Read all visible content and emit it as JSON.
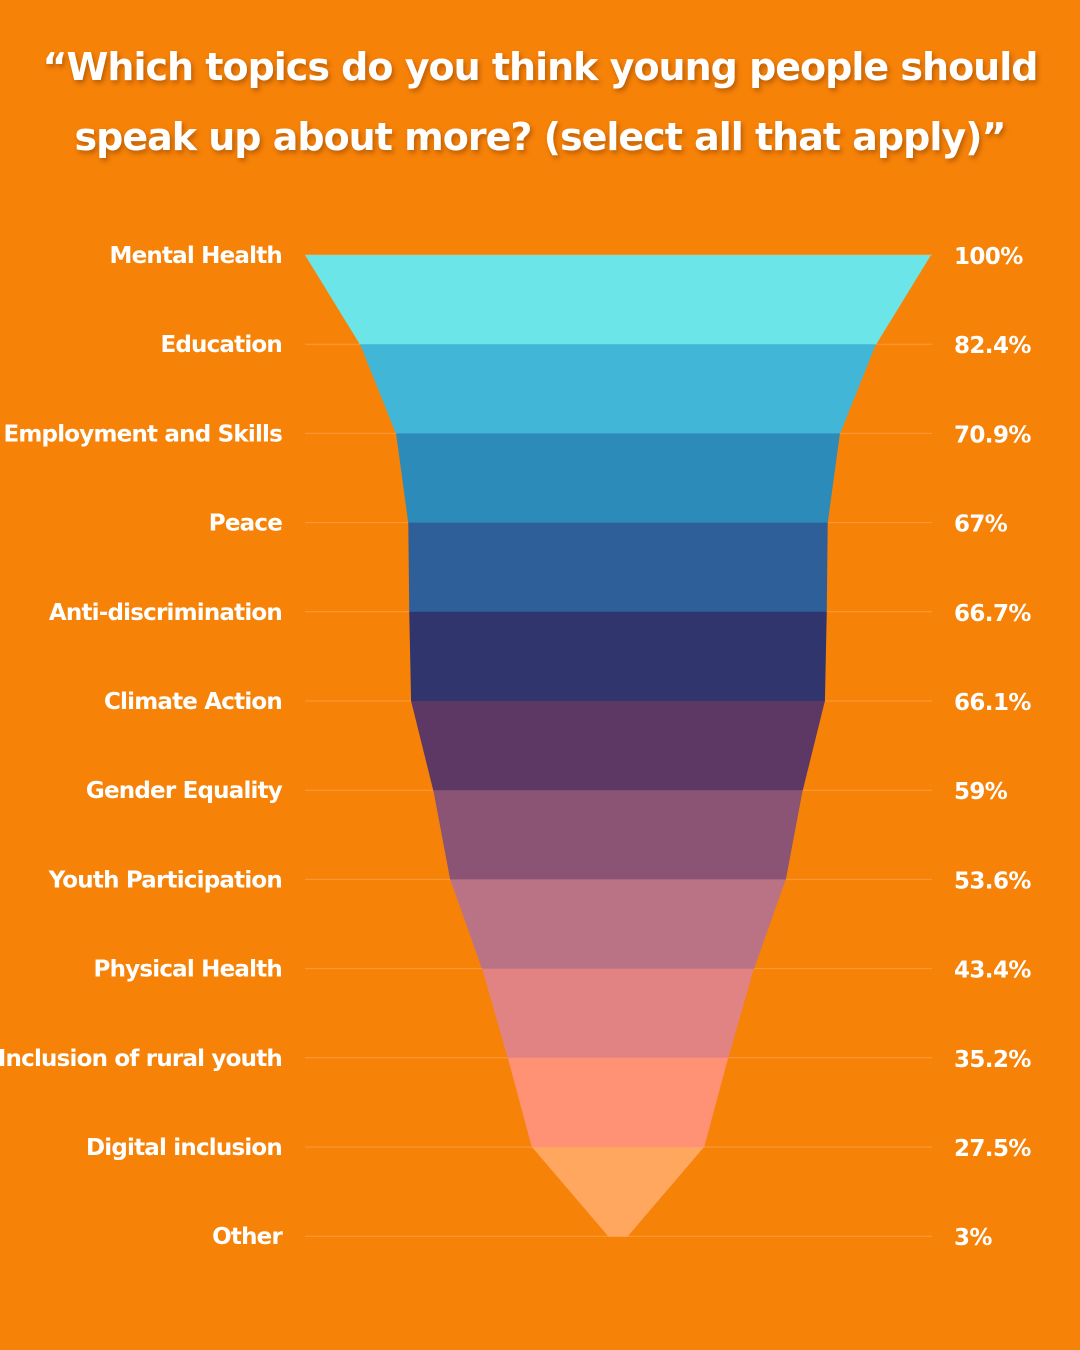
{
  "chart_data": {
    "type": "funnel",
    "title": "“Which topics do you think young people should speak up about more? (select all that apply)”",
    "categories": [
      "Mental Health",
      "Education",
      "Employment and Skills",
      "Peace",
      "Anti-discrimination",
      "Climate Action",
      "Gender Equality",
      "Youth Participation",
      "Physical Health",
      "Inclusion of rural youth",
      "Digital inclusion",
      "Other"
    ],
    "values": [
      100,
      82.4,
      70.9,
      67,
      66.7,
      66.1,
      59,
      53.6,
      43.4,
      35.2,
      27.5,
      3
    ],
    "value_labels": [
      "100%",
      "82.4%",
      "70.9%",
      "67%",
      "66.7%",
      "66.1%",
      "59%",
      "53.6%",
      "43.4%",
      "35.2%",
      "27.5%",
      "3%"
    ],
    "colors": [
      "#6ce5e8",
      "#41b6d6",
      "#2d8bba",
      "#2f5f98",
      "#31356e",
      "#5e3865",
      "#8b5374",
      "#ba7385",
      "#e28383",
      "#ff9274",
      "#ffa65f"
    ],
    "background": "#f68208",
    "grid": true
  }
}
